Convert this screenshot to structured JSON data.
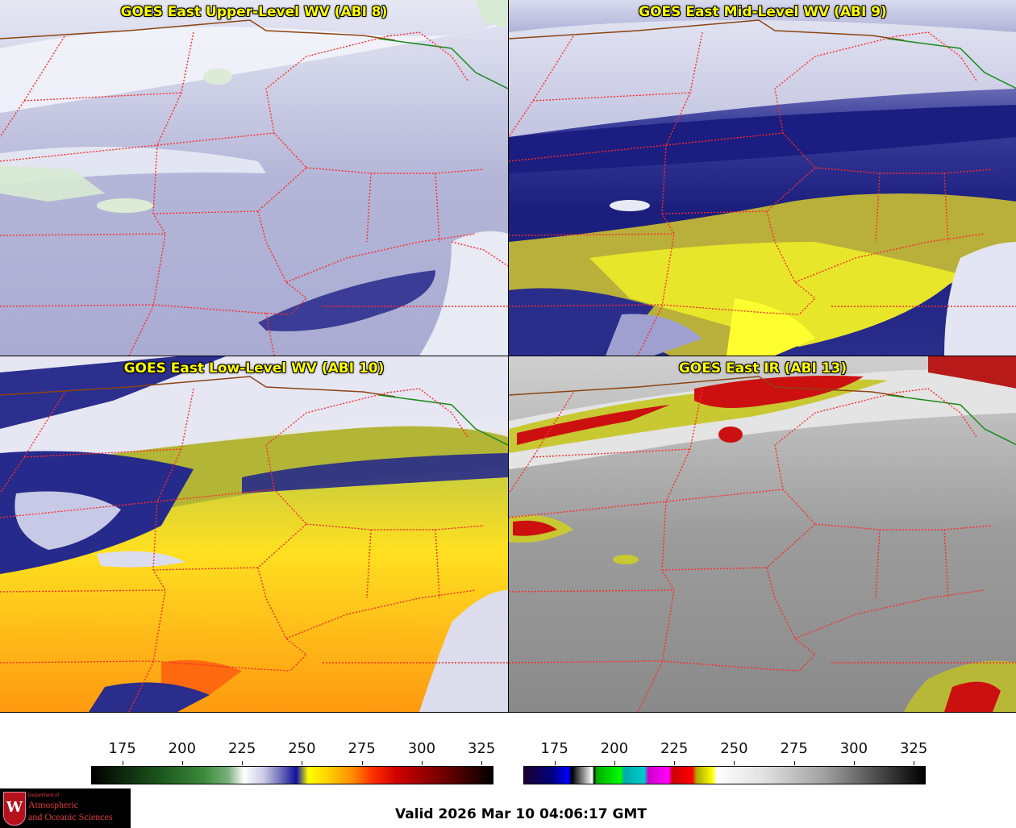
{
  "panels": [
    {
      "id": "upper",
      "title": "GOES East Upper-Level WV (ABI 8)"
    },
    {
      "id": "mid",
      "title": "GOES East Mid-Level WV (ABI 9)"
    },
    {
      "id": "low",
      "title": "GOES East Low-Level WV (ABI 10)"
    },
    {
      "id": "ir",
      "title": "GOES East IR (ABI 13)"
    }
  ],
  "colorbars": {
    "wv": {
      "ticks": [
        "175",
        "200",
        "225",
        "250",
        "275",
        "300",
        "325"
      ],
      "min": 162,
      "max": 330
    },
    "ir": {
      "ticks": [
        "175",
        "200",
        "225",
        "250",
        "275",
        "300",
        "325"
      ],
      "min": 162,
      "max": 330
    }
  },
  "valid_time": "Valid 2026 Mar 10 04:06:17 GMT",
  "logo": {
    "department": "Department of",
    "line1": "Atmospheric",
    "line2": "and Oceanic Sciences",
    "crest_letter": "W"
  },
  "colors": {
    "boundary_state": "#ff2a2a",
    "boundary_country": "#8b4513",
    "boundary_canada": "#1a8a1a",
    "title_text": "#ffff00"
  }
}
